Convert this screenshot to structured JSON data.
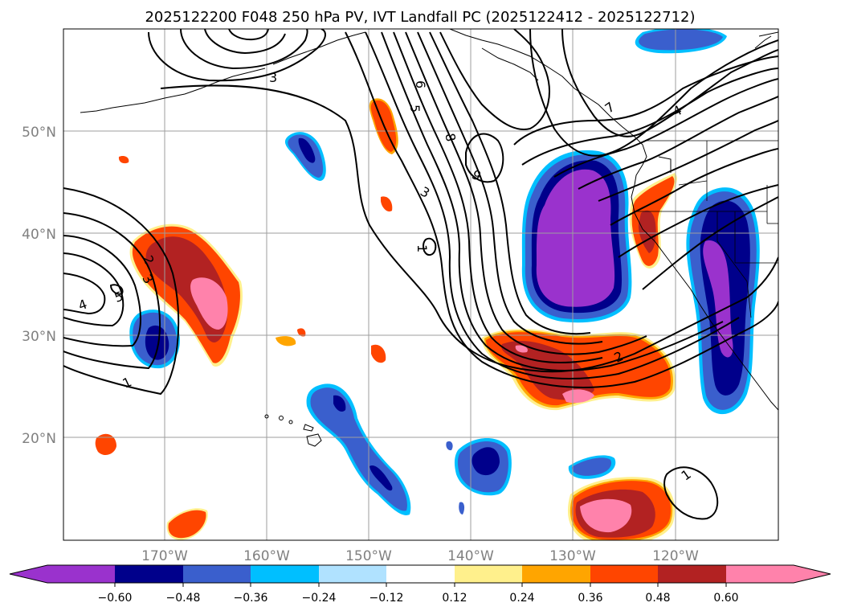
{
  "map": {
    "title": "2025122200 F048 250 hPa PV, IVT Landfall PC (2025122412 - 2025122712)",
    "lon_labels": [
      "170°W",
      "160°W",
      "150°W",
      "140°W",
      "130°W",
      "120°W"
    ],
    "lat_labels": [
      "50°N",
      "40°N",
      "30°N",
      "20°N"
    ],
    "contour_labels": [
      "3",
      "6",
      "5",
      "8",
      "9",
      "3",
      "1",
      "7",
      "4",
      "2",
      "3",
      "4",
      "5",
      "1",
      "2",
      "1"
    ],
    "colorbar": {
      "tick_labels": [
        "−0.60",
        "−0.48",
        "−0.36",
        "−0.24",
        "−0.12",
        "0.12",
        "0.24",
        "0.36",
        "0.48",
        "0.60"
      ],
      "colors": [
        "#9a32cd",
        "#00008b",
        "#3a5fcd",
        "#00bfff",
        "#b0e2ff",
        "#ffffff",
        "#fff08c",
        "#ffa500",
        "#ff4500",
        "#b22222",
        "#ff82ab"
      ]
    }
  },
  "chart_data": {
    "type": "heatmap",
    "title": "2025122200 F048 250 hPa PV, IVT Landfall PC (2025122412 - 2025122712)",
    "color_levels": [
      -0.6,
      -0.48,
      -0.36,
      -0.24,
      -0.12,
      0.12,
      0.24,
      0.36,
      0.48,
      0.6
    ],
    "extend": "both",
    "contour_labels": [
      1,
      2,
      3,
      4,
      5,
      6,
      7,
      8,
      9
    ]
  }
}
